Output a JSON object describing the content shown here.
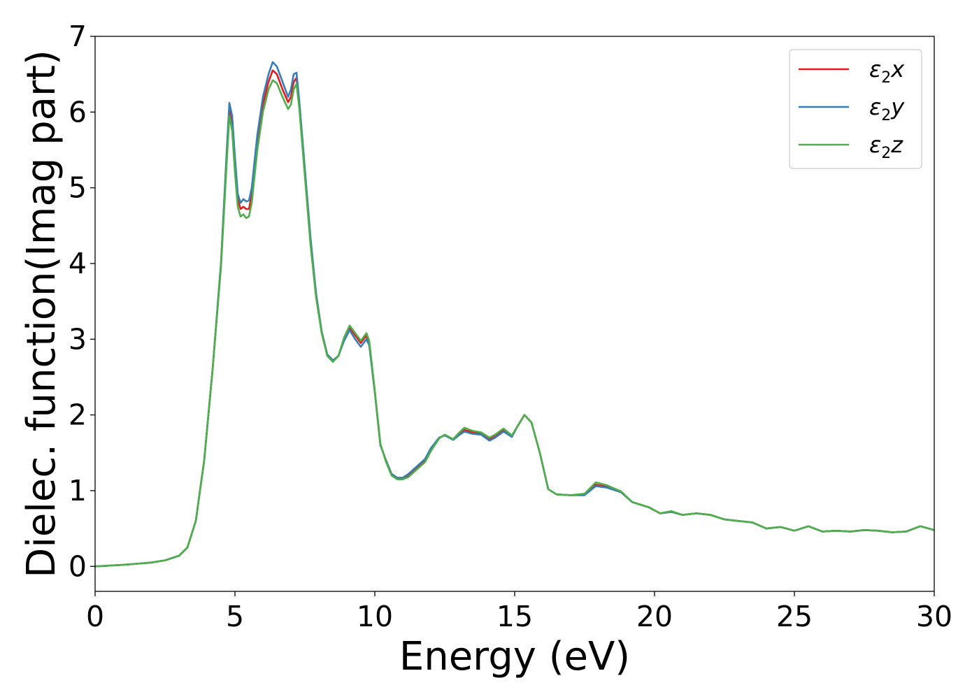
{
  "chart_data": {
    "type": "line",
    "title": "",
    "xlabel": "Energy (eV)",
    "ylabel": "Dielec. function(Imag part)",
    "xlim": [
      0,
      30
    ],
    "ylim": [
      -0.33,
      7
    ],
    "xticks": [
      0,
      5,
      10,
      15,
      20,
      25,
      30
    ],
    "yticks": [
      0,
      1,
      2,
      3,
      4,
      5,
      6,
      7
    ],
    "grid": false,
    "legend_position": "top-right",
    "series": [
      {
        "name": "ε₂x",
        "legend_base": "ε",
        "legend_sub": "2",
        "legend_suffix": "x",
        "color": "#e41a1c",
        "points": [
          [
            0,
            0.0
          ],
          [
            0.5,
            0.01
          ],
          [
            1,
            0.02
          ],
          [
            1.5,
            0.035
          ],
          [
            2,
            0.05
          ],
          [
            2.5,
            0.08
          ],
          [
            3,
            0.14
          ],
          [
            3.3,
            0.25
          ],
          [
            3.6,
            0.6
          ],
          [
            3.9,
            1.4
          ],
          [
            4.2,
            2.6
          ],
          [
            4.5,
            4.0
          ],
          [
            4.7,
            5.4
          ],
          [
            4.8,
            6.05
          ],
          [
            4.9,
            5.85
          ],
          [
            5.0,
            5.3
          ],
          [
            5.1,
            4.85
          ],
          [
            5.2,
            4.72
          ],
          [
            5.3,
            4.75
          ],
          [
            5.4,
            4.72
          ],
          [
            5.5,
            4.72
          ],
          [
            5.6,
            4.9
          ],
          [
            5.8,
            5.6
          ],
          [
            6.0,
            6.1
          ],
          [
            6.2,
            6.4
          ],
          [
            6.35,
            6.55
          ],
          [
            6.5,
            6.5
          ],
          [
            6.7,
            6.3
          ],
          [
            6.9,
            6.13
          ],
          [
            7.0,
            6.2
          ],
          [
            7.1,
            6.4
          ],
          [
            7.2,
            6.45
          ],
          [
            7.3,
            6.1
          ],
          [
            7.5,
            5.2
          ],
          [
            7.7,
            4.3
          ],
          [
            7.9,
            3.6
          ],
          [
            8.1,
            3.1
          ],
          [
            8.3,
            2.8
          ],
          [
            8.5,
            2.72
          ],
          [
            8.7,
            2.78
          ],
          [
            8.9,
            3.0
          ],
          [
            9.1,
            3.15
          ],
          [
            9.3,
            3.05
          ],
          [
            9.5,
            2.95
          ],
          [
            9.7,
            3.05
          ],
          [
            9.8,
            2.95
          ],
          [
            10.0,
            2.3
          ],
          [
            10.2,
            1.6
          ],
          [
            10.4,
            1.4
          ],
          [
            10.6,
            1.22
          ],
          [
            10.8,
            1.17
          ],
          [
            11.0,
            1.17
          ],
          [
            11.2,
            1.2
          ],
          [
            11.5,
            1.3
          ],
          [
            11.8,
            1.4
          ],
          [
            12.0,
            1.55
          ],
          [
            12.3,
            1.7
          ],
          [
            12.5,
            1.73
          ],
          [
            12.8,
            1.68
          ],
          [
            13.0,
            1.75
          ],
          [
            13.2,
            1.8
          ],
          [
            13.5,
            1.77
          ],
          [
            13.8,
            1.75
          ],
          [
            14.1,
            1.68
          ],
          [
            14.3,
            1.72
          ],
          [
            14.6,
            1.8
          ],
          [
            14.9,
            1.72
          ],
          [
            15.1,
            1.85
          ],
          [
            15.35,
            2.0
          ],
          [
            15.6,
            1.9
          ],
          [
            15.9,
            1.5
          ],
          [
            16.2,
            1.02
          ],
          [
            16.5,
            0.95
          ],
          [
            17.0,
            0.94
          ],
          [
            17.5,
            0.95
          ],
          [
            17.9,
            1.08
          ],
          [
            18.3,
            1.05
          ],
          [
            18.8,
            0.98
          ],
          [
            19.2,
            0.85
          ],
          [
            19.8,
            0.78
          ],
          [
            20.2,
            0.7
          ],
          [
            20.6,
            0.72
          ],
          [
            21.0,
            0.68
          ],
          [
            21.5,
            0.7
          ],
          [
            22.0,
            0.68
          ],
          [
            22.5,
            0.62
          ],
          [
            23.0,
            0.6
          ],
          [
            23.5,
            0.58
          ],
          [
            24.0,
            0.5
          ],
          [
            24.5,
            0.52
          ],
          [
            25.0,
            0.47
          ],
          [
            25.5,
            0.53
          ],
          [
            26.0,
            0.46
          ],
          [
            26.5,
            0.47
          ],
          [
            27.0,
            0.46
          ],
          [
            27.5,
            0.48
          ],
          [
            28.0,
            0.47
          ],
          [
            28.5,
            0.45
          ],
          [
            29.0,
            0.46
          ],
          [
            29.5,
            0.53
          ],
          [
            30.0,
            0.48
          ]
        ]
      },
      {
        "name": "ε₂y",
        "legend_base": "ε",
        "legend_sub": "2",
        "legend_suffix": "y",
        "color": "#377eb8",
        "points": [
          [
            0,
            0.0
          ],
          [
            0.5,
            0.01
          ],
          [
            1,
            0.02
          ],
          [
            1.5,
            0.035
          ],
          [
            2,
            0.05
          ],
          [
            2.5,
            0.08
          ],
          [
            3,
            0.14
          ],
          [
            3.3,
            0.25
          ],
          [
            3.6,
            0.6
          ],
          [
            3.9,
            1.4
          ],
          [
            4.2,
            2.6
          ],
          [
            4.5,
            4.0
          ],
          [
            4.7,
            5.45
          ],
          [
            4.8,
            6.12
          ],
          [
            4.9,
            5.95
          ],
          [
            5.0,
            5.4
          ],
          [
            5.1,
            4.92
          ],
          [
            5.2,
            4.8
          ],
          [
            5.3,
            4.85
          ],
          [
            5.4,
            4.82
          ],
          [
            5.5,
            4.83
          ],
          [
            5.6,
            5.0
          ],
          [
            5.8,
            5.7
          ],
          [
            6.0,
            6.2
          ],
          [
            6.2,
            6.5
          ],
          [
            6.35,
            6.66
          ],
          [
            6.5,
            6.6
          ],
          [
            6.7,
            6.4
          ],
          [
            6.9,
            6.2
          ],
          [
            7.0,
            6.3
          ],
          [
            7.1,
            6.5
          ],
          [
            7.2,
            6.52
          ],
          [
            7.3,
            6.15
          ],
          [
            7.5,
            5.25
          ],
          [
            7.7,
            4.35
          ],
          [
            7.9,
            3.6
          ],
          [
            8.1,
            3.1
          ],
          [
            8.3,
            2.8
          ],
          [
            8.5,
            2.72
          ],
          [
            8.7,
            2.78
          ],
          [
            8.9,
            2.98
          ],
          [
            9.1,
            3.12
          ],
          [
            9.3,
            3.0
          ],
          [
            9.5,
            2.9
          ],
          [
            9.7,
            3.0
          ],
          [
            9.8,
            2.92
          ],
          [
            10.0,
            2.3
          ],
          [
            10.2,
            1.6
          ],
          [
            10.4,
            1.4
          ],
          [
            10.6,
            1.22
          ],
          [
            10.8,
            1.17
          ],
          [
            11.0,
            1.17
          ],
          [
            11.2,
            1.22
          ],
          [
            11.5,
            1.32
          ],
          [
            11.8,
            1.42
          ],
          [
            12.0,
            1.56
          ],
          [
            12.3,
            1.7
          ],
          [
            12.5,
            1.73
          ],
          [
            12.8,
            1.67
          ],
          [
            13.0,
            1.73
          ],
          [
            13.2,
            1.78
          ],
          [
            13.5,
            1.75
          ],
          [
            13.8,
            1.74
          ],
          [
            14.1,
            1.66
          ],
          [
            14.3,
            1.7
          ],
          [
            14.6,
            1.78
          ],
          [
            14.9,
            1.71
          ],
          [
            15.1,
            1.85
          ],
          [
            15.35,
            2.0
          ],
          [
            15.6,
            1.9
          ],
          [
            15.9,
            1.5
          ],
          [
            16.2,
            1.02
          ],
          [
            16.5,
            0.95
          ],
          [
            17.0,
            0.94
          ],
          [
            17.5,
            0.94
          ],
          [
            17.9,
            1.06
          ],
          [
            18.3,
            1.04
          ],
          [
            18.8,
            0.98
          ],
          [
            19.2,
            0.85
          ],
          [
            19.8,
            0.78
          ],
          [
            20.2,
            0.7
          ],
          [
            20.6,
            0.72
          ],
          [
            21.0,
            0.68
          ],
          [
            21.5,
            0.7
          ],
          [
            22.0,
            0.68
          ],
          [
            22.5,
            0.62
          ],
          [
            23.0,
            0.6
          ],
          [
            23.5,
            0.58
          ],
          [
            24.0,
            0.5
          ],
          [
            24.5,
            0.52
          ],
          [
            25.0,
            0.47
          ],
          [
            25.5,
            0.53
          ],
          [
            26.0,
            0.46
          ],
          [
            26.5,
            0.47
          ],
          [
            27.0,
            0.46
          ],
          [
            27.5,
            0.48
          ],
          [
            28.0,
            0.47
          ],
          [
            28.5,
            0.45
          ],
          [
            29.0,
            0.46
          ],
          [
            29.5,
            0.53
          ],
          [
            30.0,
            0.48
          ]
        ]
      },
      {
        "name": "ε₂z",
        "legend_base": "ε",
        "legend_sub": "2",
        "legend_suffix": "z",
        "color": "#4daf4a",
        "points": [
          [
            0,
            0.0
          ],
          [
            0.5,
            0.01
          ],
          [
            1,
            0.02
          ],
          [
            1.5,
            0.035
          ],
          [
            2,
            0.05
          ],
          [
            2.5,
            0.08
          ],
          [
            3,
            0.14
          ],
          [
            3.3,
            0.25
          ],
          [
            3.6,
            0.6
          ],
          [
            3.9,
            1.4
          ],
          [
            4.2,
            2.6
          ],
          [
            4.5,
            3.95
          ],
          [
            4.7,
            5.3
          ],
          [
            4.8,
            5.95
          ],
          [
            4.9,
            5.75
          ],
          [
            5.0,
            5.2
          ],
          [
            5.1,
            4.75
          ],
          [
            5.2,
            4.62
          ],
          [
            5.3,
            4.65
          ],
          [
            5.4,
            4.6
          ],
          [
            5.5,
            4.62
          ],
          [
            5.6,
            4.8
          ],
          [
            5.8,
            5.5
          ],
          [
            6.0,
            6.0
          ],
          [
            6.2,
            6.3
          ],
          [
            6.35,
            6.42
          ],
          [
            6.5,
            6.38
          ],
          [
            6.7,
            6.2
          ],
          [
            6.9,
            6.04
          ],
          [
            7.0,
            6.1
          ],
          [
            7.1,
            6.3
          ],
          [
            7.2,
            6.37
          ],
          [
            7.3,
            6.05
          ],
          [
            7.5,
            5.15
          ],
          [
            7.7,
            4.25
          ],
          [
            7.9,
            3.55
          ],
          [
            8.1,
            3.08
          ],
          [
            8.3,
            2.78
          ],
          [
            8.5,
            2.7
          ],
          [
            8.7,
            2.78
          ],
          [
            8.9,
            3.02
          ],
          [
            9.1,
            3.18
          ],
          [
            9.3,
            3.08
          ],
          [
            9.5,
            2.98
          ],
          [
            9.7,
            3.08
          ],
          [
            9.8,
            2.98
          ],
          [
            10.0,
            2.32
          ],
          [
            10.2,
            1.62
          ],
          [
            10.4,
            1.38
          ],
          [
            10.6,
            1.2
          ],
          [
            10.8,
            1.15
          ],
          [
            11.0,
            1.15
          ],
          [
            11.2,
            1.18
          ],
          [
            11.5,
            1.28
          ],
          [
            11.8,
            1.38
          ],
          [
            12.0,
            1.52
          ],
          [
            12.3,
            1.69
          ],
          [
            12.5,
            1.74
          ],
          [
            12.8,
            1.68
          ],
          [
            13.0,
            1.76
          ],
          [
            13.2,
            1.83
          ],
          [
            13.5,
            1.79
          ],
          [
            13.8,
            1.77
          ],
          [
            14.1,
            1.7
          ],
          [
            14.3,
            1.74
          ],
          [
            14.6,
            1.82
          ],
          [
            14.9,
            1.73
          ],
          [
            15.1,
            1.85
          ],
          [
            15.35,
            2.0
          ],
          [
            15.6,
            1.9
          ],
          [
            15.9,
            1.5
          ],
          [
            16.2,
            1.02
          ],
          [
            16.5,
            0.95
          ],
          [
            17.0,
            0.94
          ],
          [
            17.5,
            0.96
          ],
          [
            17.9,
            1.11
          ],
          [
            18.3,
            1.07
          ],
          [
            18.8,
            0.99
          ],
          [
            19.2,
            0.85
          ],
          [
            19.8,
            0.78
          ],
          [
            20.2,
            0.7
          ],
          [
            20.6,
            0.73
          ],
          [
            21.0,
            0.68
          ],
          [
            21.5,
            0.7
          ],
          [
            22.0,
            0.68
          ],
          [
            22.5,
            0.62
          ],
          [
            23.0,
            0.6
          ],
          [
            23.5,
            0.58
          ],
          [
            24.0,
            0.5
          ],
          [
            24.5,
            0.52
          ],
          [
            25.0,
            0.47
          ],
          [
            25.5,
            0.53
          ],
          [
            26.0,
            0.46
          ],
          [
            26.5,
            0.47
          ],
          [
            27.0,
            0.46
          ],
          [
            27.5,
            0.48
          ],
          [
            28.0,
            0.47
          ],
          [
            28.5,
            0.45
          ],
          [
            29.0,
            0.46
          ],
          [
            29.5,
            0.53
          ],
          [
            30.0,
            0.48
          ]
        ]
      }
    ]
  }
}
